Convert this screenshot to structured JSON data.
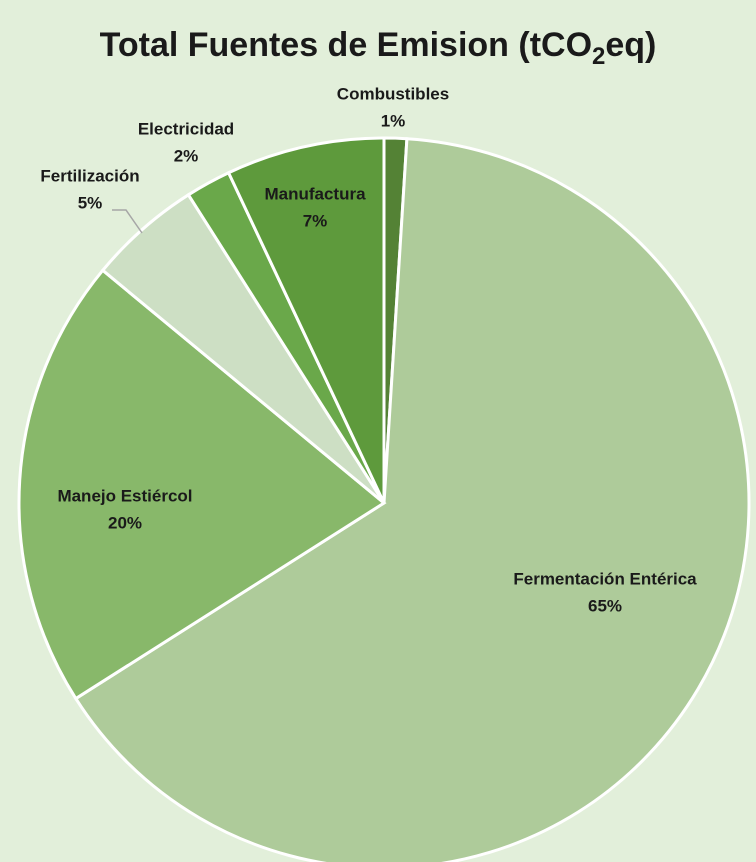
{
  "chart_data": {
    "type": "pie",
    "title": [
      "Total Fuentes de Emision (tCO",
      "2",
      "eq)"
    ],
    "categories": [
      "Combustibles",
      "Fermentación Entérica",
      "Manejo Estiércol",
      "Fertilización",
      "Electricidad",
      "Manufactura"
    ],
    "values": [
      1,
      65,
      20,
      5,
      2,
      7
    ],
    "value_labels": [
      "1%",
      "65%",
      "20%",
      "5%",
      "2%",
      "7%"
    ],
    "colors": [
      "#548235",
      "#aecb9a",
      "#88b86a",
      "#cddfc4",
      "#6aa84a",
      "#5e9a3c"
    ]
  }
}
